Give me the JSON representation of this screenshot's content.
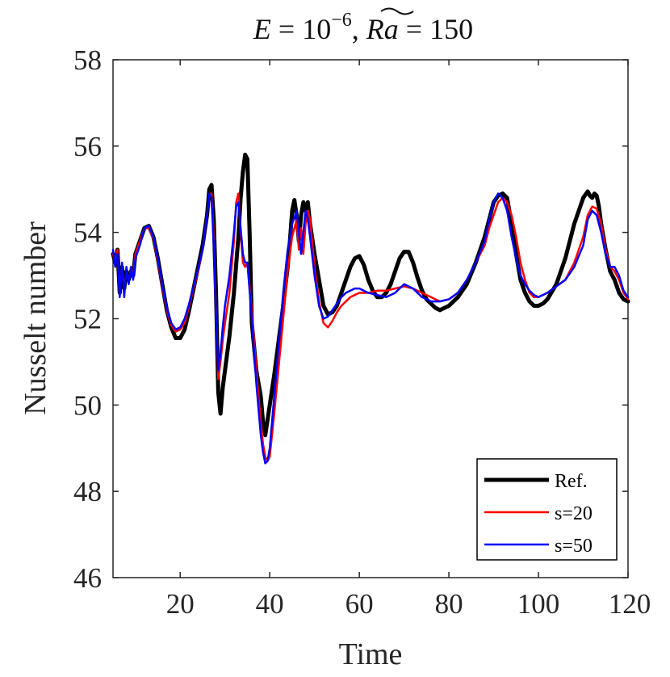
{
  "chart_data": {
    "type": "line",
    "title": "E = 10^{-6}, Ra~ = 150",
    "title_parts": {
      "e_symbol": "E",
      "eq1": " = 10",
      "exponent": "−6",
      "comma": ", ",
      "ra_symbol": "Ra",
      "eq2": " = 150"
    },
    "xlabel": "Time",
    "ylabel": "Nusselt number",
    "xlim": [
      5,
      120
    ],
    "ylim": [
      46,
      58
    ],
    "xticks": [
      20,
      40,
      60,
      80,
      100,
      120
    ],
    "yticks": [
      46,
      48,
      50,
      52,
      54,
      56,
      58
    ],
    "grid": false,
    "legend_position": "bottom-right",
    "series": [
      {
        "name": "Ref.",
        "color": "#000000",
        "line_width": 5,
        "x": [
          5,
          5.5,
          6,
          6.5,
          7,
          7.5,
          8,
          8.5,
          9,
          9.5,
          10,
          11,
          12,
          13,
          14,
          15,
          16,
          17,
          18,
          19,
          20,
          21,
          22,
          23,
          24,
          25,
          26,
          26.5,
          27,
          27.5,
          28,
          28.5,
          29,
          29.5,
          30,
          31,
          32,
          33,
          33.5,
          34,
          34.5,
          35,
          35.5,
          36,
          37,
          38,
          38.5,
          39,
          40,
          41,
          42,
          43,
          44,
          44.5,
          45,
          45.5,
          46,
          46.5,
          47,
          47.5,
          48,
          48.5,
          49,
          50,
          51,
          52,
          53,
          54,
          55,
          56,
          57,
          58,
          59,
          60,
          61,
          62,
          63,
          64,
          65,
          66,
          67,
          68,
          69,
          70,
          71,
          72,
          73,
          74,
          75,
          76,
          77,
          78,
          79,
          80,
          82,
          84,
          86,
          88,
          89,
          90,
          91,
          92,
          93,
          94,
          95,
          96,
          97,
          98,
          99,
          100,
          101,
          102,
          104,
          106,
          108,
          110,
          111,
          111.5,
          112,
          112.5,
          113,
          113.5,
          114,
          115,
          116,
          117,
          118,
          119,
          120
        ],
        "y": [
          53.5,
          53.3,
          53.6,
          52.6,
          53.2,
          52.7,
          53.1,
          52.9,
          53.1,
          53.0,
          53.5,
          53.8,
          54.1,
          54.15,
          53.9,
          53.4,
          52.8,
          52.2,
          51.8,
          51.55,
          51.55,
          51.75,
          52.2,
          52.7,
          53.2,
          53.7,
          54.4,
          55.0,
          55.1,
          54.3,
          52.6,
          50.3,
          49.8,
          50.4,
          50.8,
          51.6,
          52.6,
          53.9,
          54.8,
          55.4,
          55.8,
          55.7,
          54.0,
          51.9,
          50.8,
          50.2,
          49.6,
          49.3,
          50.0,
          50.7,
          51.5,
          52.3,
          53.2,
          53.8,
          54.5,
          54.75,
          54.4,
          53.8,
          54.4,
          54.7,
          54.5,
          54.7,
          54.2,
          53.5,
          52.9,
          52.3,
          52.1,
          52.15,
          52.3,
          52.6,
          52.9,
          53.2,
          53.4,
          53.45,
          53.25,
          52.9,
          52.65,
          52.5,
          52.5,
          52.6,
          52.8,
          53.1,
          53.4,
          53.55,
          53.55,
          53.3,
          52.95,
          52.65,
          52.45,
          52.35,
          52.25,
          52.2,
          52.25,
          52.3,
          52.5,
          52.8,
          53.3,
          53.9,
          54.3,
          54.7,
          54.85,
          54.9,
          54.8,
          54.2,
          53.5,
          52.9,
          52.6,
          52.4,
          52.3,
          52.3,
          52.35,
          52.45,
          52.8,
          53.4,
          54.2,
          54.8,
          54.95,
          54.85,
          54.8,
          54.9,
          54.85,
          54.6,
          54.2,
          53.6,
          53.1,
          52.9,
          52.6,
          52.45,
          52.4
        ]
      },
      {
        "name": "s=20",
        "color": "#ff0000",
        "line_width": 2.5,
        "x": [
          5,
          5.5,
          6,
          6.5,
          7,
          7.5,
          8,
          8.5,
          9,
          9.5,
          10,
          11,
          12,
          13,
          14,
          15,
          16,
          17,
          18,
          19,
          20,
          21,
          22,
          23,
          24,
          25,
          26,
          26.5,
          27,
          27.5,
          28,
          28.5,
          29,
          29.5,
          30,
          31,
          32,
          32.5,
          33,
          33.5,
          34,
          34.5,
          35,
          36,
          37,
          38,
          38.5,
          39,
          39.5,
          40,
          41,
          42,
          43,
          44,
          45,
          46,
          46.5,
          47,
          47.5,
          48,
          48.5,
          49,
          50,
          51,
          52,
          53,
          54,
          55,
          56,
          57,
          58,
          59,
          60,
          62,
          64,
          66,
          68,
          70,
          72,
          74,
          76,
          78,
          80,
          82,
          84,
          86,
          88,
          89,
          90,
          91,
          92,
          93,
          94,
          95,
          96,
          97,
          98,
          99,
          100,
          102,
          104,
          106,
          108,
          110,
          111,
          112,
          113,
          114,
          115,
          116,
          117,
          118,
          119,
          120
        ],
        "y": [
          53.5,
          53.3,
          53.6,
          52.6,
          53.2,
          52.7,
          53.1,
          52.9,
          53.1,
          53.0,
          53.5,
          53.8,
          54.1,
          54.1,
          53.85,
          53.35,
          52.75,
          52.2,
          51.85,
          51.7,
          51.75,
          51.9,
          52.3,
          52.7,
          53.1,
          53.6,
          54.4,
          54.9,
          54.9,
          53.9,
          52.2,
          50.6,
          51.0,
          51.5,
          51.9,
          52.6,
          53.8,
          54.7,
          54.9,
          54.0,
          53.3,
          53.2,
          53.3,
          52.2,
          50.8,
          49.6,
          49.1,
          48.8,
          48.7,
          48.8,
          49.8,
          50.9,
          52.0,
          53.1,
          53.9,
          54.3,
          53.6,
          54.1,
          53.5,
          54.2,
          54.5,
          54.3,
          53.2,
          52.4,
          51.9,
          51.8,
          51.95,
          52.15,
          52.3,
          52.4,
          52.5,
          52.55,
          52.6,
          52.6,
          52.65,
          52.65,
          52.7,
          52.75,
          52.7,
          52.6,
          52.5,
          52.4,
          52.45,
          52.6,
          52.9,
          53.3,
          53.7,
          54.1,
          54.4,
          54.7,
          54.8,
          54.7,
          54.4,
          53.9,
          53.3,
          52.9,
          52.6,
          52.5,
          52.5,
          52.6,
          52.75,
          52.9,
          53.3,
          53.9,
          54.4,
          54.6,
          54.55,
          54.2,
          53.6,
          53.2,
          53.1,
          52.9,
          52.6,
          52.45
        ]
      },
      {
        "name": "s=50",
        "color": "#0000ff",
        "line_width": 2.5,
        "x": [
          5,
          5.5,
          6,
          6.5,
          7,
          7.5,
          8,
          8.5,
          9,
          9.5,
          10,
          11,
          12,
          13,
          14,
          15,
          16,
          17,
          18,
          19,
          20,
          21,
          22,
          23,
          24,
          25,
          26,
          26.5,
          27,
          27.5,
          28,
          28.5,
          29,
          29.5,
          30,
          31,
          32,
          32.5,
          33,
          33.5,
          34,
          34.5,
          35,
          36,
          37,
          38,
          38.5,
          39,
          39.5,
          40,
          41,
          42,
          43,
          44,
          45,
          46,
          46.5,
          47,
          47.5,
          48,
          48.5,
          49,
          50,
          51,
          52,
          53,
          54,
          55,
          56,
          57,
          58,
          59,
          60,
          62,
          64,
          66,
          68,
          70,
          72,
          74,
          76,
          78,
          80,
          82,
          84,
          86,
          88,
          89,
          90,
          91,
          92,
          93,
          94,
          95,
          96,
          97,
          98,
          99,
          100,
          102,
          104,
          106,
          108,
          110,
          111,
          112,
          113,
          114,
          115,
          116,
          117,
          118,
          119,
          120
        ],
        "y": [
          53.6,
          53.2,
          53.5,
          52.5,
          53.3,
          52.5,
          53.2,
          52.8,
          53.2,
          52.9,
          53.4,
          53.7,
          54.1,
          54.15,
          53.9,
          53.4,
          52.8,
          52.25,
          51.9,
          51.75,
          51.8,
          52.0,
          52.35,
          52.75,
          53.15,
          53.6,
          54.4,
          54.9,
          54.8,
          53.7,
          52.1,
          50.8,
          51.2,
          51.8,
          52.3,
          53.0,
          54.0,
          54.6,
          54.7,
          54.1,
          53.5,
          53.3,
          53.3,
          52.0,
          50.5,
          49.3,
          48.9,
          48.65,
          48.7,
          49.0,
          50.2,
          51.4,
          52.6,
          53.6,
          54.2,
          54.5,
          54.0,
          53.5,
          54.0,
          54.5,
          54.3,
          53.9,
          53.0,
          52.3,
          52.0,
          52.05,
          52.2,
          52.35,
          52.5,
          52.6,
          52.65,
          52.7,
          52.7,
          52.6,
          52.55,
          52.5,
          52.6,
          52.8,
          52.7,
          52.5,
          52.4,
          52.4,
          52.45,
          52.6,
          52.9,
          53.3,
          53.8,
          54.3,
          54.7,
          54.9,
          54.8,
          54.5,
          53.9,
          53.4,
          53.0,
          52.8,
          52.65,
          52.55,
          52.5,
          52.6,
          52.75,
          52.9,
          53.2,
          53.7,
          54.3,
          54.5,
          54.4,
          54.0,
          53.5,
          53.2,
          53.2,
          53.0,
          52.65,
          52.5
        ]
      }
    ]
  }
}
